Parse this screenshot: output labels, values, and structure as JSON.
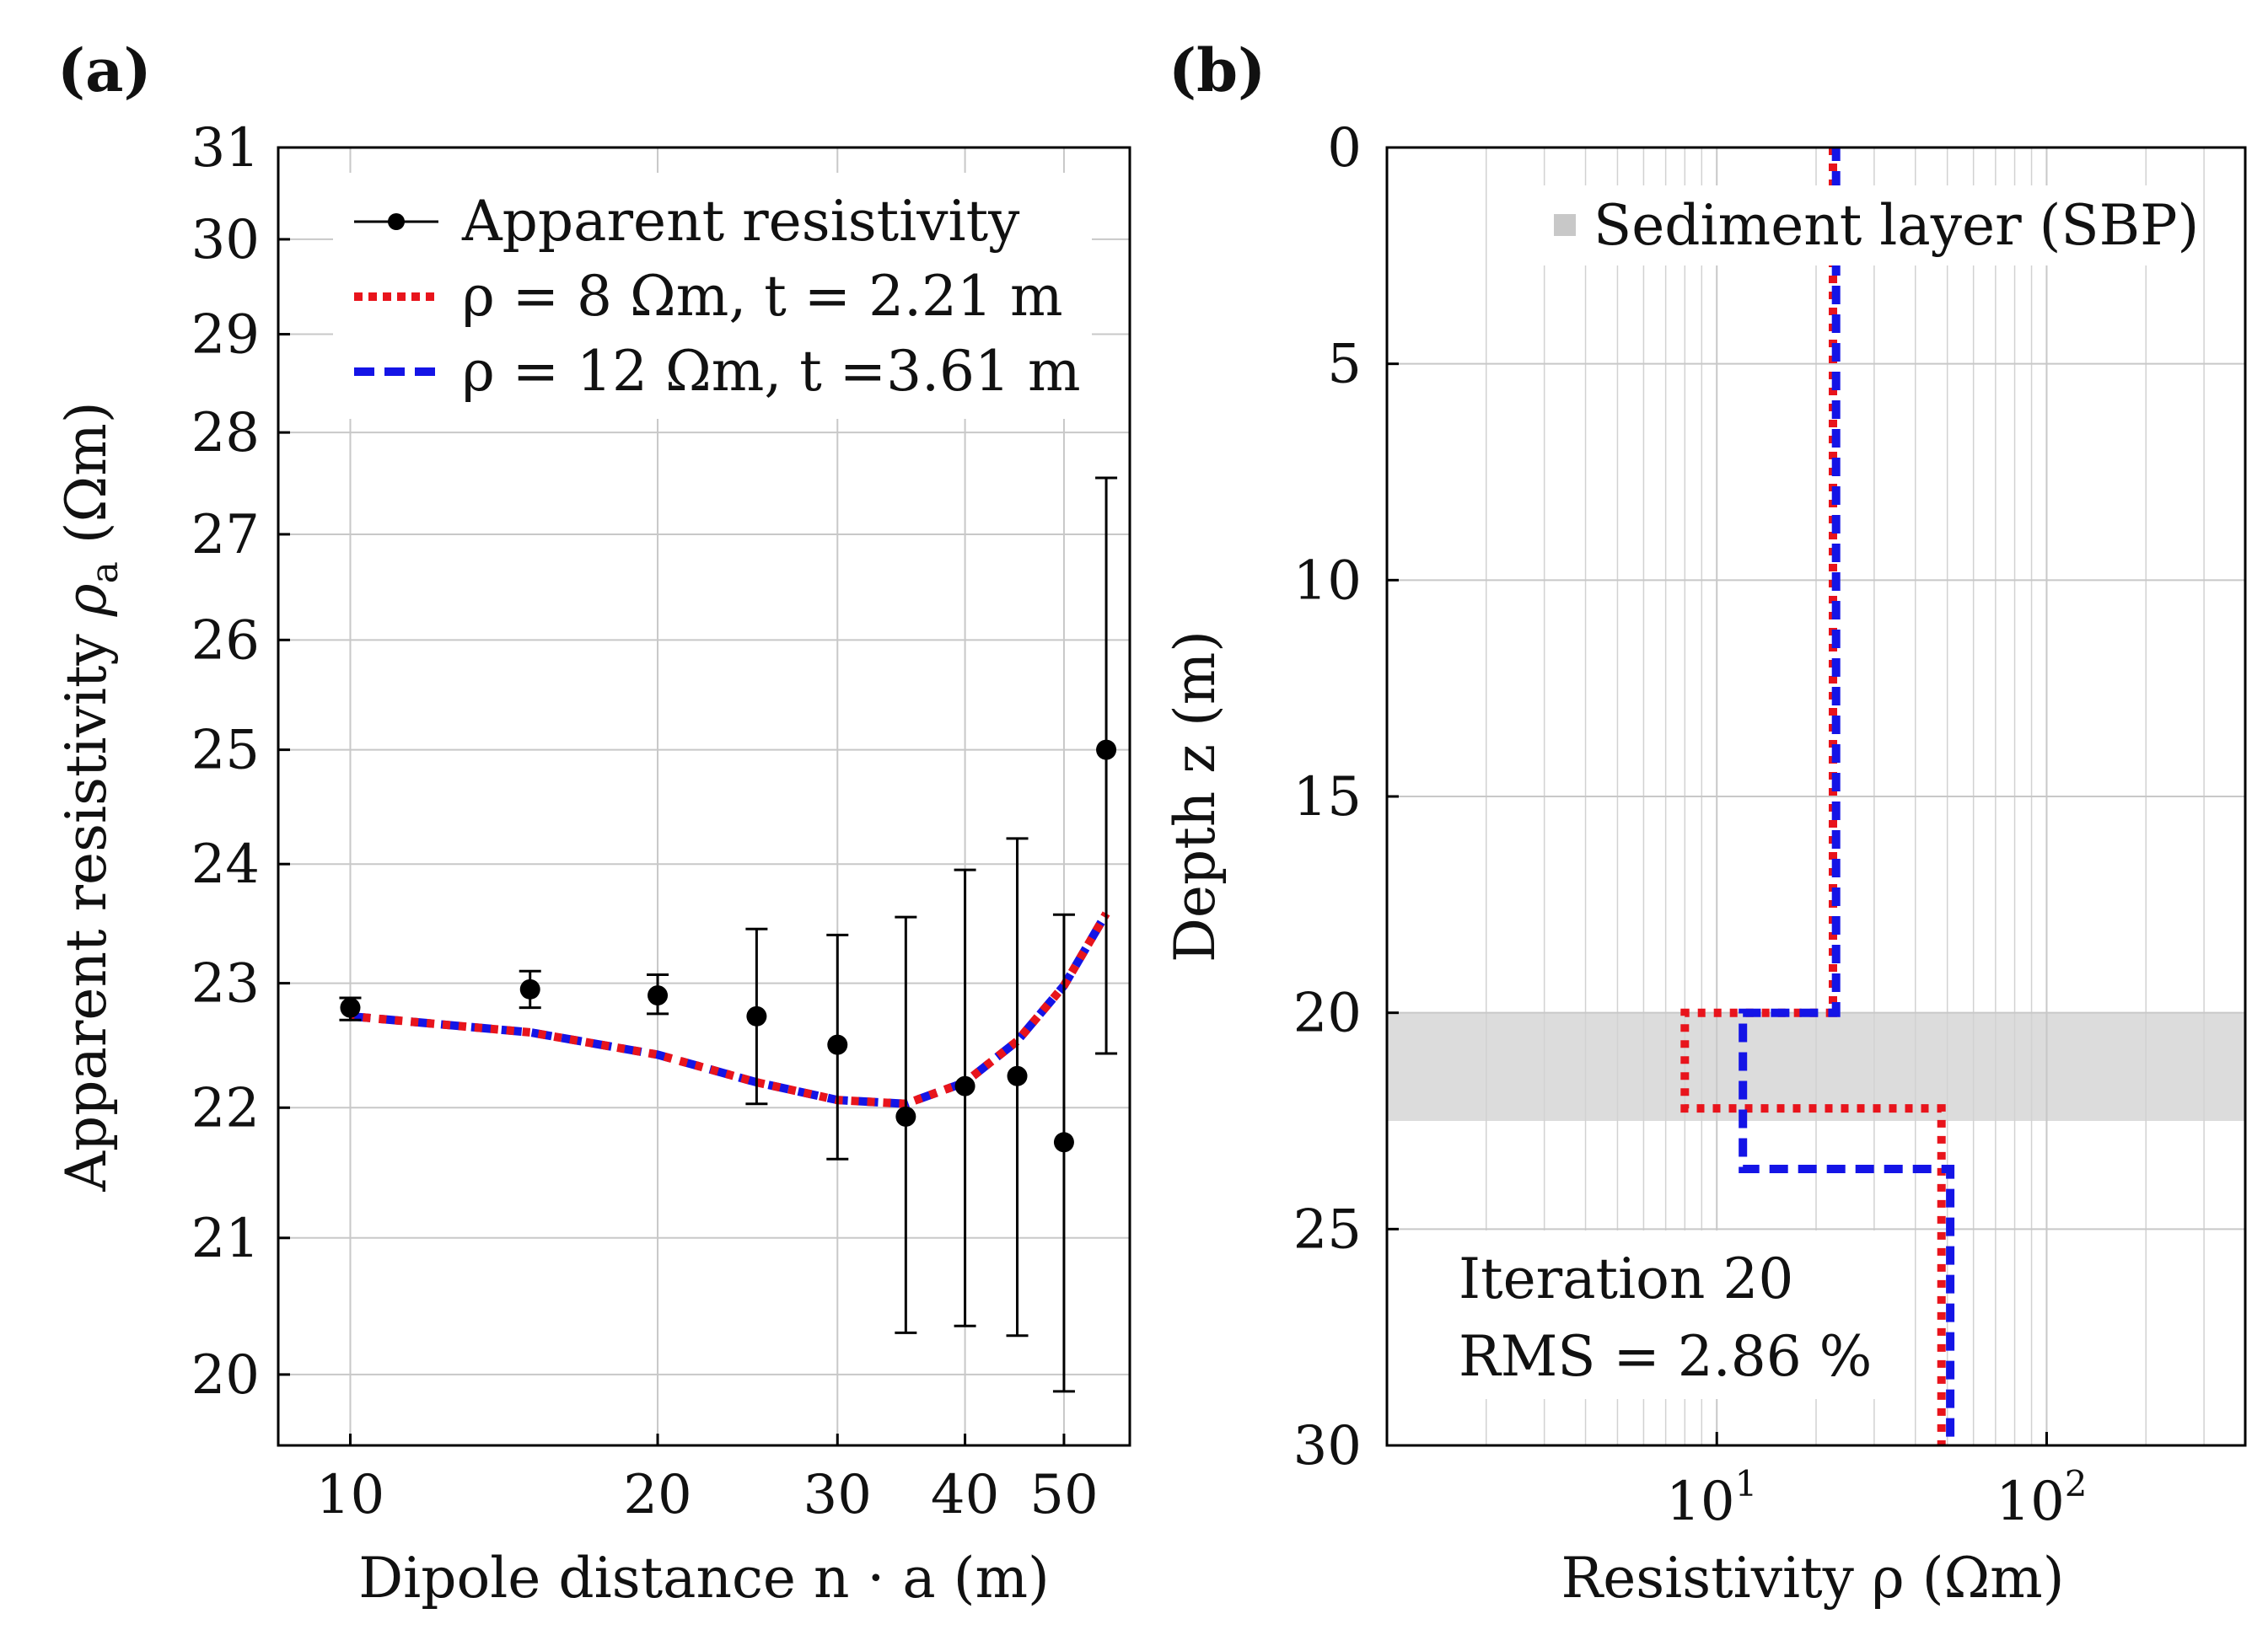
{
  "chart_data": [
    {
      "panel": "(a)",
      "type": "scatter",
      "xscale": "log",
      "yscale": "log",
      "xlabel": "Dipole distance n · a (m)",
      "ylabel": "Apparent resistivity ρa (Ωm)",
      "xlim": [
        8.5,
        58
      ],
      "ylim": [
        19.5,
        31
      ],
      "xticks": [
        10,
        20,
        30,
        40,
        50
      ],
      "yticks": [
        20,
        21,
        22,
        23,
        24,
        25,
        26,
        27,
        28,
        29,
        30,
        31
      ],
      "grid": true,
      "legend_position": "top-left",
      "series": [
        {
          "name": "Apparent resistivity",
          "kind": "points-with-errorbars",
          "color": "#000000",
          "x": [
            10,
            15,
            20,
            25,
            30,
            35,
            40,
            45,
            50,
            55
          ],
          "y": [
            22.8,
            22.95,
            22.9,
            22.73,
            22.5,
            21.93,
            22.17,
            22.25,
            21.73,
            25.0
          ],
          "err_low": [
            22.7,
            22.8,
            22.75,
            22.03,
            21.6,
            20.3,
            20.35,
            20.28,
            19.88,
            22.43
          ],
          "err_high": [
            22.88,
            23.1,
            23.07,
            23.45,
            23.4,
            23.55,
            23.95,
            24.22,
            23.57,
            27.55
          ]
        },
        {
          "name": "ρ = 8 Ωm, t = 2.21 m",
          "kind": "line",
          "style": "dotted",
          "color": "#e8141c",
          "x": [
            10,
            15,
            20,
            25,
            30,
            35,
            40,
            45,
            50,
            55
          ],
          "y": [
            22.73,
            22.6,
            22.42,
            22.2,
            22.06,
            22.03,
            22.2,
            22.53,
            22.98,
            23.58
          ]
        },
        {
          "name": "ρ = 12 Ωm, t =3.61 m",
          "kind": "line",
          "style": "dashed",
          "color": "#1414e6",
          "x": [
            10,
            15,
            20,
            25,
            30,
            35,
            40,
            45,
            50,
            55
          ],
          "y": [
            22.73,
            22.6,
            22.42,
            22.2,
            22.06,
            22.03,
            22.2,
            22.53,
            22.98,
            23.58
          ]
        }
      ]
    },
    {
      "panel": "(b)",
      "type": "line",
      "xscale": "log",
      "xlabel": "Resistivity ρ (Ωm)",
      "ylabel": "Depth z (m)",
      "xlim": [
        1,
        400
      ],
      "ylim": [
        0,
        30
      ],
      "y_inverted": true,
      "xticks": [
        10,
        100
      ],
      "xtick_labels": [
        "10^1",
        "10^2"
      ],
      "yticks": [
        0,
        5,
        10,
        15,
        20,
        25,
        30
      ],
      "grid": true,
      "legend_position": "top-right",
      "shaded_band": {
        "name": "Sediment layer (SBP)",
        "from": 20.0,
        "to": 22.5,
        "color": "#dcdcdc"
      },
      "series": [
        {
          "name": "ρ = 8 Ωm, t = 2.21 m",
          "style": "dotted",
          "color": "#e8141c",
          "rho": [
            22.5,
            22.5,
            8,
            8,
            48,
            48
          ],
          "z": [
            0,
            20.0,
            20.0,
            22.21,
            22.21,
            30
          ]
        },
        {
          "name": "ρ = 12 Ωm, t =3.61 m",
          "style": "dashed",
          "color": "#1414e6",
          "rho": [
            23,
            23,
            12,
            12,
            51,
            51
          ],
          "z": [
            0,
            20.0,
            20.0,
            23.61,
            23.61,
            30
          ]
        }
      ],
      "annotation": [
        "Iteration 20",
        "RMS = 2.86 %"
      ]
    }
  ],
  "labels": {
    "panel_a": "(a)",
    "panel_b": "(b)",
    "a_xtick": [
      "10",
      "20",
      "30",
      "40",
      "50"
    ],
    "a_ytick": [
      "20",
      "21",
      "22",
      "23",
      "24",
      "25",
      "26",
      "27",
      "28",
      "29",
      "30",
      "31"
    ],
    "a_xlabel": "Dipole distance n · a (m)",
    "a_ylabel_main": "Apparent resistivity ",
    "a_ylabel_sym": "ρ",
    "a_ylabel_sub": "a",
    "a_ylabel_unit": " (Ωm)",
    "a_legend": [
      "Apparent resistivity",
      "ρ = 8 Ωm, t = 2.21 m",
      "ρ = 12 Ωm, t =3.61 m"
    ],
    "b_ytick": [
      "0",
      "5",
      "10",
      "15",
      "20",
      "25",
      "30"
    ],
    "b_xtick_base": [
      "10",
      "10"
    ],
    "b_xtick_exp": [
      "1",
      "2"
    ],
    "b_xlabel": "Resistivity ρ (Ωm)",
    "b_ylabel": "Depth z (m)",
    "b_legend": "Sediment layer (SBP)",
    "b_annot_1": "Iteration 20",
    "b_annot_2": "RMS = 2.86 %"
  },
  "colors": {
    "red": "#e8141c",
    "blue": "#1414e6",
    "band": "#dcdcdc",
    "points": "#000000"
  }
}
